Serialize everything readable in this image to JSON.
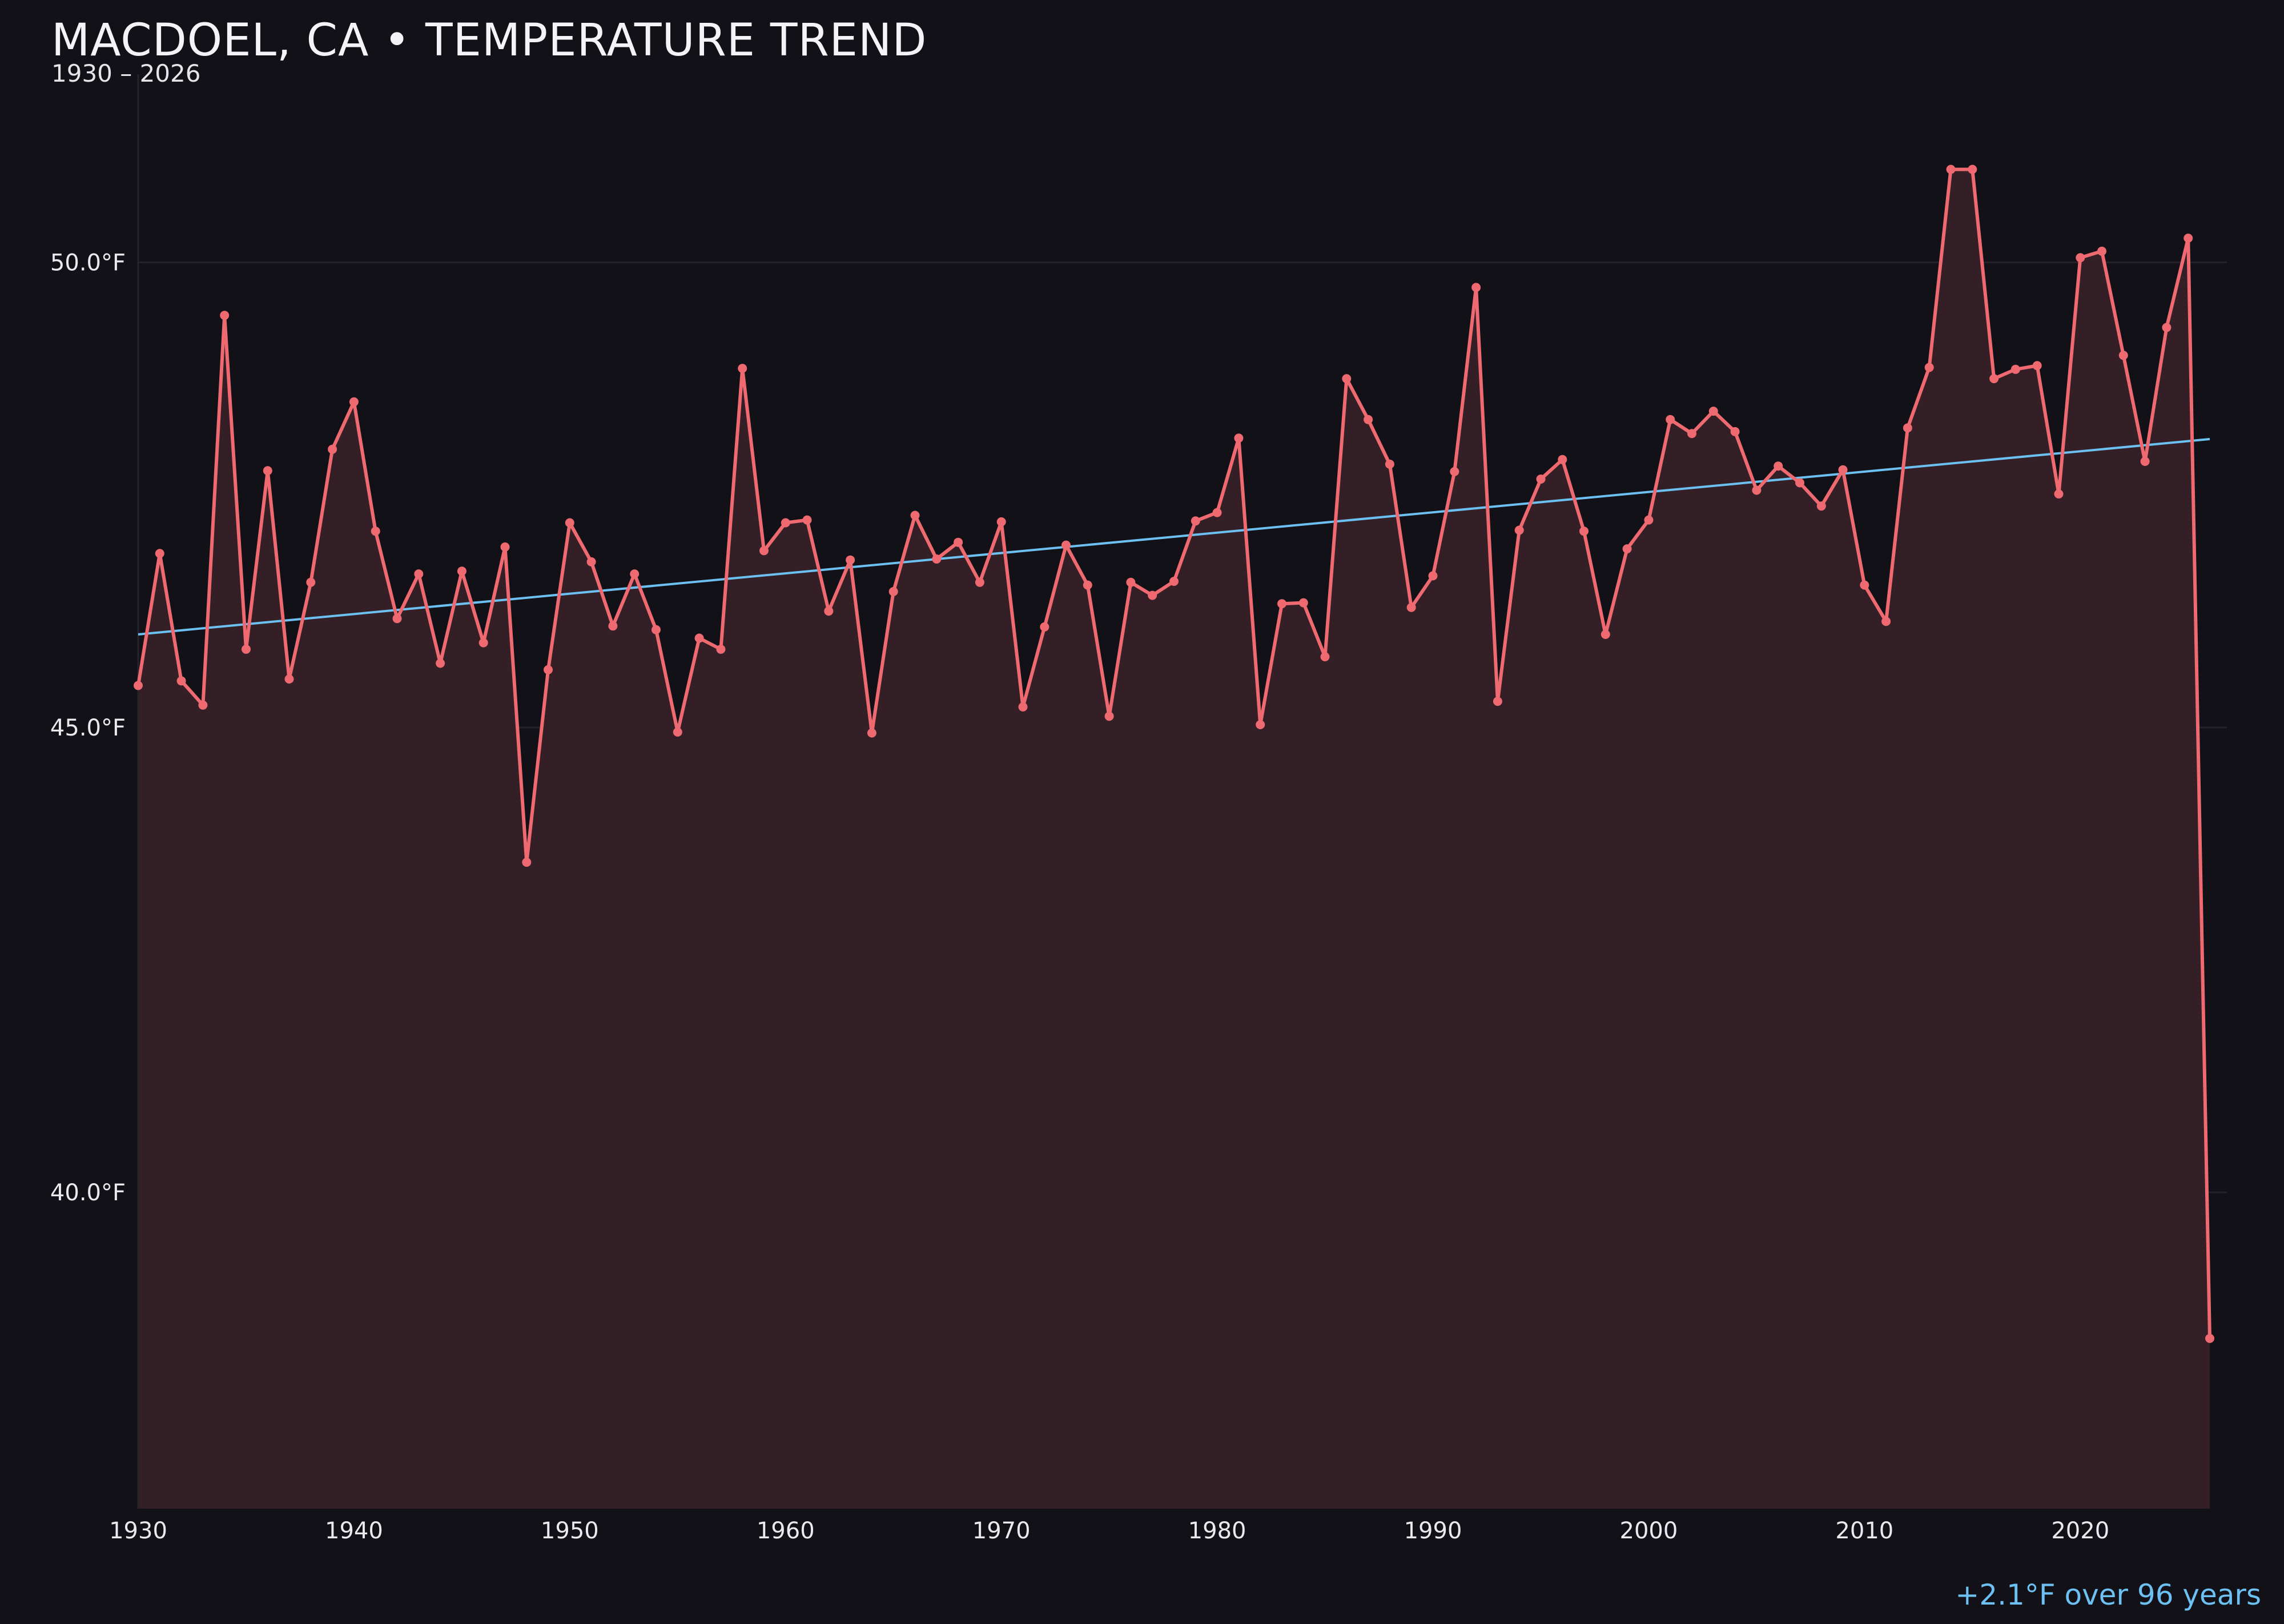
{
  "header": {
    "title": "MACDOEL, CA • TEMPERATURE TREND",
    "subtitle": "1930 – 2026"
  },
  "footer": {
    "trend_note": "+2.1°F over 96 years"
  },
  "colors": {
    "background": "#121118",
    "series_line": "#ee6a70",
    "series_fill": "#341f26",
    "trend_line": "#6cc0f2",
    "grid": "#262128",
    "text": "#e9e9ee"
  },
  "chart_data": {
    "type": "line",
    "title": "MACDOEL, CA • TEMPERATURE TREND",
    "subtitle": "1930 – 2026",
    "xlabel": "",
    "ylabel": "",
    "xlim": [
      1930,
      2026
    ],
    "ylim": [
      36.6,
      51.9
    ],
    "x_ticks": [
      1930,
      1940,
      1950,
      1960,
      1970,
      1980,
      1990,
      2000,
      2010,
      2020
    ],
    "x_tick_labels": [
      "1930",
      "1940",
      "1950",
      "1960",
      "1970",
      "1980",
      "1990",
      "2000",
      "2010",
      "2020"
    ],
    "y_ticks": [
      40,
      45,
      50
    ],
    "y_tick_labels": [
      "40.0°F",
      "45.0°F",
      "50.0°F"
    ],
    "grid": "horizontal",
    "area_fill": true,
    "series": [
      {
        "x": [
          1930,
          1931,
          1932,
          1933,
          1934,
          1935,
          1936,
          1937,
          1938,
          1939,
          1940,
          1941,
          1942,
          1943,
          1944,
          1945,
          1946,
          1947,
          1948,
          1949,
          1950,
          1951,
          1952,
          1953,
          1954,
          1955,
          1956,
          1957,
          1958,
          1959,
          1960,
          1961,
          1962,
          1963,
          1964,
          1965,
          1966,
          1967,
          1968,
          1969,
          1970,
          1971,
          1972,
          1973,
          1974,
          1975,
          1976,
          1977,
          1978,
          1979,
          1980,
          1981,
          1982,
          1983,
          1984,
          1985,
          1986,
          1987,
          1988,
          1989,
          1990,
          1991,
          1992,
          1993,
          1994,
          1995,
          1996,
          1997,
          1998,
          1999,
          2000,
          2001,
          2002,
          2003,
          2004,
          2005,
          2006,
          2007,
          2008,
          2009,
          2010,
          2011,
          2012,
          2013,
          2014,
          2015,
          2016,
          2017,
          2018,
          2019,
          2020,
          2021,
          2022,
          2023,
          2024,
          2025,
          2026
        ],
        "values": [
          45.45,
          46.87,
          45.5,
          45.24,
          49.43,
          45.84,
          47.76,
          45.52,
          46.56,
          47.99,
          48.5,
          47.11,
          46.17,
          46.65,
          45.69,
          46.68,
          45.91,
          46.94,
          43.55,
          45.62,
          47.2,
          46.78,
          46.09,
          46.65,
          46.05,
          44.95,
          45.96,
          45.84,
          48.86,
          46.9,
          47.2,
          47.23,
          46.25,
          46.8,
          44.94,
          46.46,
          47.28,
          46.81,
          46.99,
          46.56,
          47.21,
          45.22,
          46.08,
          46.96,
          46.53,
          45.12,
          46.56,
          46.42,
          46.57,
          47.22,
          47.31,
          48.11,
          45.03,
          46.33,
          46.34,
          45.76,
          48.75,
          48.31,
          47.83,
          46.29,
          46.63,
          47.75,
          49.73,
          45.28,
          47.12,
          47.67,
          47.88,
          47.11,
          46.0,
          46.92,
          47.23,
          48.31,
          48.16,
          48.4,
          48.18,
          47.55,
          47.81,
          47.63,
          47.38,
          47.77,
          46.53,
          46.14,
          48.22,
          48.87,
          51.0,
          51.0,
          48.75,
          48.85,
          48.89,
          47.51,
          50.05,
          50.12,
          49.0,
          47.86,
          49.3,
          50.26,
          38.43
        ]
      }
    ],
    "trend_line": {
      "x": [
        1930,
        2026
      ],
      "values": [
        46.0,
        48.1
      ]
    },
    "annotations": [
      "+2.1°F over 96 years"
    ]
  }
}
